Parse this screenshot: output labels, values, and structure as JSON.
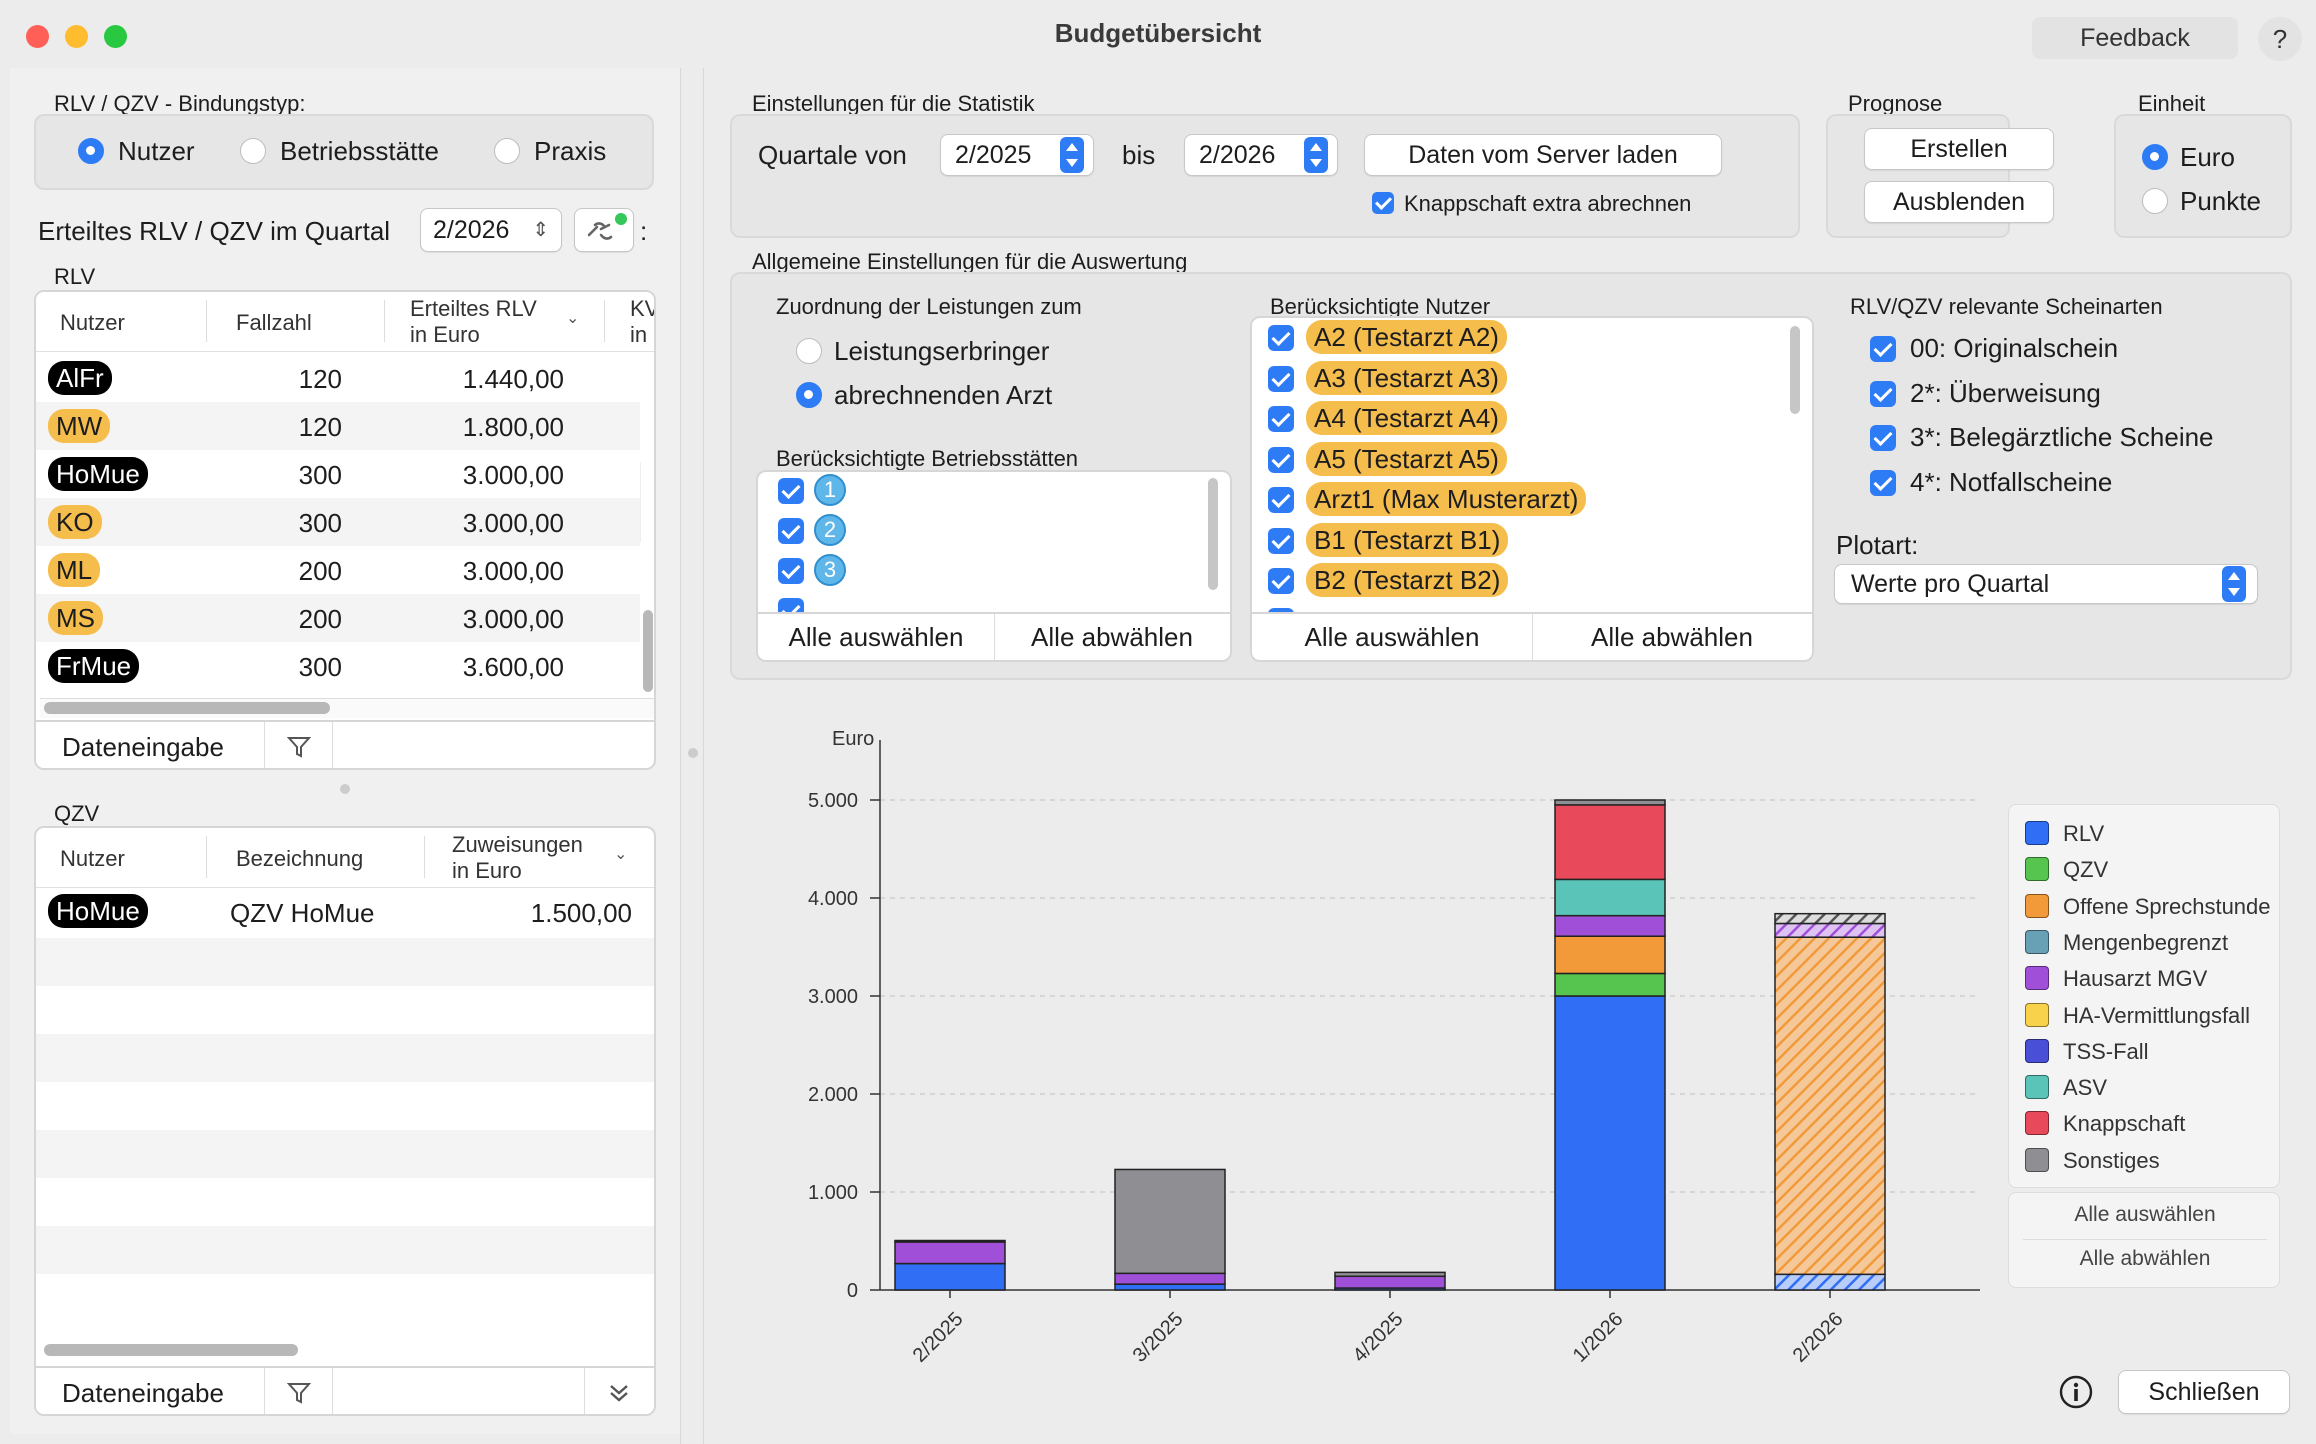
{
  "window": {
    "title": "Budgetübersicht",
    "feedback": "Feedback",
    "help": "?"
  },
  "left": {
    "bindungstyp_label": "RLV / QZV - Bindungstyp:",
    "bindungstyp_options": [
      "Nutzer",
      "Betriebsstätte",
      "Praxis"
    ],
    "bindungstyp_selected": "Nutzer",
    "erteilt_label": "Erteiltes RLV / QZV im Quartal",
    "erteilt_quarter": "2/2026",
    "colon": ":",
    "rlv": {
      "title": "RLV",
      "headers": {
        "nutzer": "Nutzer",
        "fallzahl": "Fallzahl",
        "erteilt1": "Erteiltes RLV",
        "erteilt2": "in Euro",
        "kv1": "KV",
        "kv2": "in"
      },
      "rows": [
        {
          "nutzer": "AlFr",
          "style": "black",
          "fallzahl": "120",
          "erteilt": "1.440,00"
        },
        {
          "nutzer": "MW",
          "style": "orange",
          "fallzahl": "120",
          "erteilt": "1.800,00"
        },
        {
          "nutzer": "HoMue",
          "style": "black",
          "fallzahl": "300",
          "erteilt": "3.000,00"
        },
        {
          "nutzer": "KO",
          "style": "orange",
          "fallzahl": "300",
          "erteilt": "3.000,00"
        },
        {
          "nutzer": "ML",
          "style": "orange",
          "fallzahl": "200",
          "erteilt": "3.000,00"
        },
        {
          "nutzer": "MS",
          "style": "orange",
          "fallzahl": "200",
          "erteilt": "3.000,00"
        },
        {
          "nutzer": "FrMue",
          "style": "black",
          "fallzahl": "300",
          "erteilt": "3.600,00"
        }
      ],
      "dateneingabe": "Dateneingabe"
    },
    "qzv": {
      "title": "QZV",
      "headers": {
        "nutzer": "Nutzer",
        "bezeichnung": "Bezeichnung",
        "zuw1": "Zuweisungen",
        "zuw2": "in Euro"
      },
      "rows": [
        {
          "nutzer": "HoMue",
          "bezeichnung": "QZV HoMue",
          "zuweisung": "1.500,00"
        }
      ],
      "dateneingabe": "Dateneingabe"
    }
  },
  "statistik": {
    "title": "Einstellungen für die Statistik",
    "quartale_von": "Quartale von",
    "von_value": "2/2025",
    "bis": "bis",
    "bis_value": "2/2026",
    "server_button": "Daten vom Server laden",
    "knappschaft": "Knappschaft extra abrechnen"
  },
  "prognose": {
    "title": "Prognose",
    "erstellen": "Erstellen",
    "ausblenden": "Ausblenden"
  },
  "einheit": {
    "title": "Einheit",
    "options": [
      "Euro",
      "Punkte"
    ],
    "selected": "Euro"
  },
  "allgemein": {
    "title": "Allgemeine Einstellungen für die Auswertung",
    "zuordnung_label": "Zuordnung der Leistungen zum",
    "zuordnung_options": [
      "Leistungserbringer",
      "abrechnenden Arzt"
    ],
    "zuordnung_selected": "abrechnenden Arzt",
    "betriebsstaetten_label": "Berücksichtigte Betriebsstätten",
    "betriebsstaetten": [
      "1",
      "2",
      "3"
    ],
    "nutzer_label": "Berücksichtigte Nutzer",
    "nutzer": [
      "A2 (Testarzt A2)",
      "A3 (Testarzt A3)",
      "A4 (Testarzt A4)",
      "A5 (Testarzt A5)",
      "Arzt1 (Max Musterarzt)",
      "B1 (Testarzt B1)",
      "B2 (Testarzt B2)"
    ],
    "alle_auswaehlen": "Alle auswählen",
    "alle_abwaehlen": "Alle abwählen",
    "scheinarten_label": "RLV/QZV relevante Scheinarten",
    "scheinarten": [
      "00: Originalschein",
      "2*: Überweisung",
      "3*: Belegärztliche Scheine",
      "4*: Notfallscheine"
    ],
    "plotart_label": "Plotart:",
    "plotart_value": "Werte pro Quartal"
  },
  "legend_buttons": {
    "alle_auswaehlen": "Alle auswählen",
    "alle_abwaehlen": "Alle abwählen"
  },
  "footer": {
    "schliessen": "Schließen"
  },
  "chart_data": {
    "type": "bar",
    "stacked": true,
    "ylabel": "Euro",
    "ylim": [
      0,
      5000
    ],
    "yticks": [
      "0",
      "1.000",
      "2.000",
      "3.000",
      "4.000",
      "5.000"
    ],
    "categories": [
      "2/2025",
      "3/2025",
      "4/2025",
      "1/2026",
      "2/2026"
    ],
    "grid": true,
    "legend_position": "right",
    "series": [
      {
        "name": "RLV",
        "color": "#2f6ef5",
        "values": [
          270,
          60,
          20,
          3000,
          160
        ]
      },
      {
        "name": "QZV",
        "color": "#56c54f",
        "values": [
          0,
          0,
          0,
          230,
          0
        ]
      },
      {
        "name": "Offene Sprechstunde",
        "color": "#f29a3a",
        "values": [
          0,
          0,
          0,
          380,
          3440
        ]
      },
      {
        "name": "Mengenbegrenzt",
        "color": "#68a0b5",
        "values": [
          0,
          0,
          0,
          0,
          0
        ]
      },
      {
        "name": "Hausarzt MGV",
        "color": "#a050d8",
        "values": [
          220,
          110,
          120,
          210,
          140
        ]
      },
      {
        "name": "HA-Vermittlungsfall",
        "color": "#f7d24a",
        "values": [
          0,
          0,
          0,
          0,
          0
        ]
      },
      {
        "name": "TSS-Fall",
        "color": "#4a4fd8",
        "values": [
          0,
          0,
          0,
          0,
          0
        ]
      },
      {
        "name": "ASV",
        "color": "#5bc4b8",
        "values": [
          0,
          0,
          0,
          370,
          0
        ]
      },
      {
        "name": "Knappschaft",
        "color": "#e84a5c",
        "values": [
          0,
          0,
          0,
          760,
          0
        ]
      },
      {
        "name": "Sonstiges",
        "color": "#8e8e93",
        "values": [
          15,
          1060,
          40,
          50,
          100
        ]
      }
    ],
    "forecast_category": "2/2026"
  }
}
